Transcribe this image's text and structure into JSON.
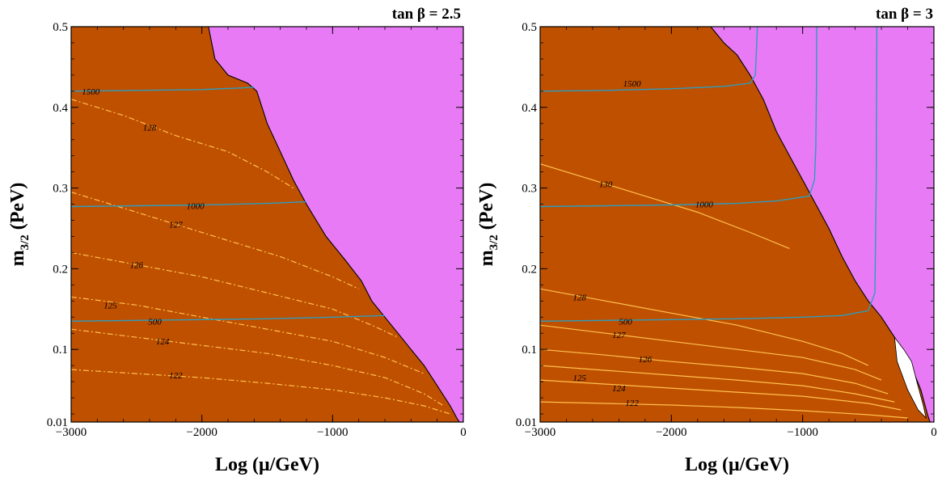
{
  "chart_data": [
    {
      "type": "contour",
      "title": "tan β = 2.5",
      "xlabel": "Log (μ/GeV)",
      "ylabel_main": "m",
      "ylabel_sub": "3/2",
      "ylabel_unit": "(PeV)",
      "xlim": [
        -3000,
        0
      ],
      "ylim": [
        0.01,
        0.5
      ],
      "x_ticks": [
        -3000,
        -2000,
        -1000,
        0
      ],
      "x_tick_labels": [
        "−3000",
        "−2000",
        "−1000",
        "0"
      ],
      "y_ticks": [
        0.01,
        0.1,
        0.2,
        0.3,
        0.4,
        0.5
      ],
      "y_tick_labels": [
        "0.01",
        "0.1",
        "0.2",
        "0.3",
        "0.4",
        "0.5"
      ],
      "colors": {
        "allowed": "#bf5000",
        "excluded": "#e87bf5",
        "higgs": "#ffc04d",
        "mass": "#2d9cbf",
        "gap": "#ffffff"
      },
      "excluded_region_boundary": [
        [
          -1950,
          0.5
        ],
        [
          -1900,
          0.46
        ],
        [
          -1800,
          0.44
        ],
        [
          -1650,
          0.43
        ],
        [
          -1580,
          0.42
        ],
        [
          -1500,
          0.38
        ],
        [
          -1400,
          0.345
        ],
        [
          -1300,
          0.31
        ],
        [
          -1200,
          0.28
        ],
        [
          -1050,
          0.24
        ],
        [
          -900,
          0.21
        ],
        [
          -780,
          0.185
        ],
        [
          -700,
          0.16
        ],
        [
          -600,
          0.14
        ],
        [
          -500,
          0.12
        ],
        [
          -400,
          0.1
        ],
        [
          -300,
          0.08
        ],
        [
          -200,
          0.055
        ],
        [
          -100,
          0.03
        ],
        [
          -50,
          0.015
        ],
        [
          -30,
          0.01
        ]
      ],
      "higgs_style": "dashed",
      "higgs_contours": [
        {
          "label": "128",
          "label_at": [
            -2400,
            0.375
          ],
          "points": [
            [
              -3000,
              0.41
            ],
            [
              -2600,
              0.39
            ],
            [
              -2200,
              0.365
            ],
            [
              -1800,
              0.345
            ],
            [
              -1500,
              0.32
            ],
            [
              -1300,
              0.3
            ]
          ]
        },
        {
          "label": "127",
          "label_at": [
            -2200,
            0.255
          ],
          "points": [
            [
              -3000,
              0.295
            ],
            [
              -2600,
              0.275
            ],
            [
              -2200,
              0.255
            ],
            [
              -1800,
              0.235
            ],
            [
              -1400,
              0.215
            ],
            [
              -1000,
              0.19
            ],
            [
              -800,
              0.175
            ]
          ]
        },
        {
          "label": "126",
          "label_at": [
            -2500,
            0.205
          ],
          "points": [
            [
              -3000,
              0.22
            ],
            [
              -2500,
              0.205
            ],
            [
              -2000,
              0.19
            ],
            [
              -1500,
              0.17
            ],
            [
              -1000,
              0.15
            ],
            [
              -700,
              0.13
            ],
            [
              -500,
              0.115
            ]
          ]
        },
        {
          "label": "125",
          "label_at": [
            -2700,
            0.155
          ],
          "points": [
            [
              -3000,
              0.165
            ],
            [
              -2500,
              0.155
            ],
            [
              -2000,
              0.14
            ],
            [
              -1500,
              0.125
            ],
            [
              -1000,
              0.11
            ],
            [
              -600,
              0.09
            ],
            [
              -300,
              0.07
            ]
          ]
        },
        {
          "label": "124",
          "label_at": [
            -2300,
            0.11
          ],
          "points": [
            [
              -3000,
              0.125
            ],
            [
              -2500,
              0.115
            ],
            [
              -2000,
              0.105
            ],
            [
              -1500,
              0.095
            ],
            [
              -1000,
              0.08
            ],
            [
              -600,
              0.065
            ],
            [
              -300,
              0.045
            ],
            [
              -150,
              0.03
            ]
          ]
        },
        {
          "label": "122",
          "label_at": [
            -2200,
            0.068
          ],
          "points": [
            [
              -3000,
              0.075
            ],
            [
              -2500,
              0.07
            ],
            [
              -2000,
              0.065
            ],
            [
              -1500,
              0.058
            ],
            [
              -1000,
              0.05
            ],
            [
              -600,
              0.04
            ],
            [
              -300,
              0.03
            ],
            [
              -100,
              0.02
            ]
          ]
        }
      ],
      "mass_contours": [
        {
          "label": "1500",
          "label_at": [
            -2850,
            0.42
          ],
          "points": [
            [
              -3000,
              0.42
            ],
            [
              -2500,
              0.421
            ],
            [
              -2000,
              0.422
            ],
            [
              -1700,
              0.424
            ],
            [
              -1600,
              0.425
            ]
          ]
        },
        {
          "label": "1000",
          "label_at": [
            -2050,
            0.278
          ],
          "points": [
            [
              -3000,
              0.277
            ],
            [
              -2500,
              0.278
            ],
            [
              -2000,
              0.279
            ],
            [
              -1500,
              0.281
            ],
            [
              -1200,
              0.283
            ]
          ]
        },
        {
          "label": "500",
          "label_at": [
            -2360,
            0.135
          ],
          "points": [
            [
              -3000,
              0.135
            ],
            [
              -2500,
              0.136
            ],
            [
              -2000,
              0.137
            ],
            [
              -1500,
              0.138
            ],
            [
              -1000,
              0.14
            ],
            [
              -600,
              0.142
            ]
          ]
        }
      ],
      "gap_region": []
    },
    {
      "type": "contour",
      "title": "tan β = 3",
      "xlabel": "Log (μ/GeV)",
      "ylabel_main": "m",
      "ylabel_sub": "3/2",
      "ylabel_unit": "(PeV)",
      "xlim": [
        -3000,
        0
      ],
      "ylim": [
        0.01,
        0.5
      ],
      "x_ticks": [
        -3000,
        -2000,
        -1000,
        0
      ],
      "x_tick_labels": [
        "−3000",
        "−2000",
        "−1000",
        "0"
      ],
      "y_ticks": [
        0.01,
        0.1,
        0.2,
        0.3,
        0.4,
        0.5
      ],
      "y_tick_labels": [
        "0.01",
        "0.1",
        "0.2",
        "0.3",
        "0.4",
        "0.5"
      ],
      "colors": {
        "allowed": "#bf5000",
        "excluded": "#e87bf5",
        "higgs": "#ffc04d",
        "mass": "#2d9cbf",
        "gap": "#ffffff"
      },
      "excluded_region_boundary": [
        [
          -1700,
          0.5
        ],
        [
          -1600,
          0.48
        ],
        [
          -1500,
          0.465
        ],
        [
          -1400,
          0.44
        ],
        [
          -1300,
          0.41
        ],
        [
          -1200,
          0.37
        ],
        [
          -1100,
          0.34
        ],
        [
          -1000,
          0.31
        ],
        [
          -900,
          0.28
        ],
        [
          -800,
          0.25
        ],
        [
          -700,
          0.215
        ],
        [
          -600,
          0.185
        ],
        [
          -500,
          0.16
        ],
        [
          -400,
          0.14
        ],
        [
          -300,
          0.115
        ],
        [
          -200,
          0.09
        ],
        [
          -100,
          0.05
        ],
        [
          -50,
          0.02
        ],
        [
          -30,
          0.01
        ]
      ],
      "higgs_style": "solid",
      "higgs_contours": [
        {
          "label": "130",
          "label_at": [
            -2500,
            0.305
          ],
          "points": [
            [
              -3000,
              0.33
            ],
            [
              -2600,
              0.31
            ],
            [
              -2200,
              0.29
            ],
            [
              -1800,
              0.27
            ],
            [
              -1400,
              0.245
            ],
            [
              -1100,
              0.225
            ]
          ]
        },
        {
          "label": "128",
          "label_at": [
            -2700,
            0.165
          ],
          "points": [
            [
              -3000,
              0.175
            ],
            [
              -2500,
              0.16
            ],
            [
              -2000,
              0.145
            ],
            [
              -1500,
              0.13
            ],
            [
              -1000,
              0.11
            ],
            [
              -700,
              0.095
            ],
            [
              -500,
              0.08
            ]
          ]
        },
        {
          "label": "127",
          "label_at": [
            -2400,
            0.118
          ],
          "points": [
            [
              -3000,
              0.13
            ],
            [
              -2500,
              0.12
            ],
            [
              -2000,
              0.11
            ],
            [
              -1500,
              0.1
            ],
            [
              -1000,
              0.09
            ],
            [
              -600,
              0.075
            ],
            [
              -400,
              0.062
            ]
          ]
        },
        {
          "label": "126",
          "label_at": [
            -2200,
            0.088
          ],
          "points": [
            [
              -3000,
              0.1
            ],
            [
              -2500,
              0.093
            ],
            [
              -2000,
              0.085
            ],
            [
              -1500,
              0.078
            ],
            [
              -1000,
              0.07
            ],
            [
              -600,
              0.058
            ],
            [
              -350,
              0.045
            ]
          ]
        },
        {
          "label": "125",
          "label_at": [
            -2700,
            0.065
          ],
          "points": [
            [
              -3000,
              0.08
            ],
            [
              -2500,
              0.074
            ],
            [
              -2000,
              0.068
            ],
            [
              -1500,
              0.062
            ],
            [
              -1000,
              0.055
            ],
            [
              -600,
              0.045
            ],
            [
              -300,
              0.035
            ]
          ]
        },
        {
          "label": "124",
          "label_at": [
            -2400,
            0.052
          ],
          "points": [
            [
              -3000,
              0.062
            ],
            [
              -2500,
              0.057
            ],
            [
              -2000,
              0.052
            ],
            [
              -1500,
              0.047
            ],
            [
              -1000,
              0.042
            ],
            [
              -500,
              0.033
            ],
            [
              -250,
              0.025
            ]
          ]
        },
        {
          "label": "122",
          "label_at": [
            -2300,
            0.034
          ],
          "points": [
            [
              -3000,
              0.035
            ],
            [
              -2500,
              0.033
            ],
            [
              -2000,
              0.031
            ],
            [
              -1500,
              0.028
            ],
            [
              -1000,
              0.024
            ],
            [
              -500,
              0.019
            ],
            [
              -200,
              0.015
            ]
          ]
        }
      ],
      "mass_contours": [
        {
          "label": "1500",
          "label_at": [
            -2300,
            0.43
          ],
          "points": [
            [
              -3000,
              0.42
            ],
            [
              -2500,
              0.421
            ],
            [
              -2000,
              0.423
            ],
            [
              -1600,
              0.426
            ],
            [
              -1400,
              0.43
            ],
            [
              -1360,
              0.44
            ],
            [
              -1350,
              0.48
            ],
            [
              -1345,
              0.5
            ]
          ]
        },
        {
          "label": "1000",
          "label_at": [
            -1750,
            0.28
          ],
          "points": [
            [
              -3000,
              0.277
            ],
            [
              -2500,
              0.278
            ],
            [
              -2000,
              0.279
            ],
            [
              -1500,
              0.281
            ],
            [
              -1200,
              0.284
            ],
            [
              -950,
              0.29
            ],
            [
              -910,
              0.31
            ],
            [
              -900,
              0.35
            ],
            [
              -895,
              0.42
            ],
            [
              -893,
              0.5
            ]
          ]
        },
        {
          "label": "500",
          "label_at": [
            -2350,
            0.135
          ],
          "points": [
            [
              -3000,
              0.135
            ],
            [
              -2500,
              0.136
            ],
            [
              -2000,
              0.137
            ],
            [
              -1500,
              0.138
            ],
            [
              -1000,
              0.14
            ],
            [
              -700,
              0.142
            ],
            [
              -500,
              0.148
            ],
            [
              -450,
              0.17
            ],
            [
              -440,
              0.3
            ],
            [
              -435,
              0.5
            ]
          ]
        }
      ],
      "gap_region": [
        [
          -300,
          0.115
        ],
        [
          -230,
          0.1
        ],
        [
          -170,
          0.085
        ],
        [
          -130,
          0.06
        ],
        [
          -80,
          0.03
        ],
        [
          -60,
          0.015
        ],
        [
          -120,
          0.025
        ],
        [
          -200,
          0.05
        ],
        [
          -280,
          0.085
        ]
      ]
    }
  ]
}
